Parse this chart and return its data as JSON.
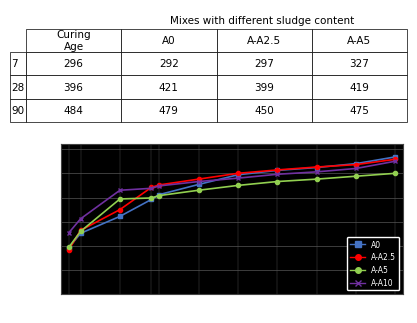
{
  "table": {
    "curing_ages": [
      7,
      28,
      90
    ],
    "mixes": [
      "A0",
      "A-A2.5",
      "A-A5",
      "A-A10"
    ],
    "values": {
      "A0": [
        296,
        396,
        484
      ],
      "A-A2.5": [
        292,
        421,
        479
      ],
      "A-A5": [
        297,
        399,
        450
      ],
      "A-A10": [
        327,
        419,
        475
      ]
    }
  },
  "chart": {
    "x_data": [
      7,
      10,
      20,
      28,
      30,
      40,
      50,
      60,
      70,
      80,
      90
    ],
    "series": {
      "A0": [
        296,
        326,
        361,
        396,
        406,
        427,
        447,
        456,
        462,
        470,
        484
      ],
      "A-A2.5": [
        292,
        332,
        375,
        421,
        426,
        438,
        450,
        457,
        463,
        468,
        479
      ],
      "A-A5": [
        297,
        330,
        397,
        399,
        404,
        415,
        425,
        433,
        438,
        444,
        450
      ],
      "A-A10": [
        327,
        356,
        415,
        419,
        424,
        433,
        440,
        448,
        453,
        460,
        475
      ]
    },
    "colors": {
      "A0": "#4472c4",
      "A-A2.5": "#ff0000",
      "A-A5": "#92d050",
      "A-A10": "#7030a0"
    },
    "markers": {
      "A0": "s",
      "A-A2.5": "o",
      "A-A5": "o",
      "A-A10": "x"
    },
    "ylim": [
      200,
      510
    ],
    "yticks": [
      200,
      250,
      300,
      350,
      400,
      450,
      500
    ],
    "xticks": [
      7,
      10,
      20,
      28,
      30,
      40,
      50,
      60,
      70,
      80,
      90
    ],
    "bg_color": "#000000",
    "grid_color": "#555555"
  },
  "table_header_bg": "#ffffff",
  "table_border_color": "#000000"
}
